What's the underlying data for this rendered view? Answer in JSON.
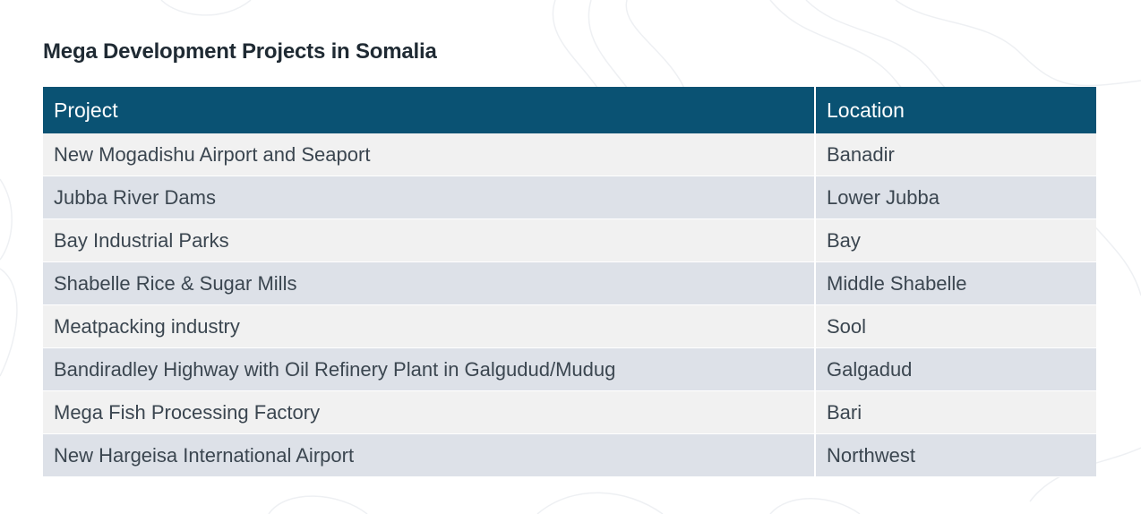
{
  "title": "Mega Development Projects in Somalia",
  "table": {
    "headers": [
      "Project",
      "Location"
    ],
    "rows": [
      {
        "project": "New Mogadishu Airport and Seaport",
        "location": "Banadir"
      },
      {
        "project": "Jubba River Dams",
        "location": "Lower Jubba"
      },
      {
        "project": "Bay Industrial Parks",
        "location": "Bay"
      },
      {
        "project": "Shabelle Rice & Sugar Mills",
        "location": "Middle Shabelle"
      },
      {
        "project": "Meatpacking industry",
        "location": "Sool"
      },
      {
        "project": "Bandiradley Highway with Oil Refinery Plant in Galgudud/Mudug",
        "location": "Galgadud"
      },
      {
        "project": "Mega Fish Processing Factory",
        "location": "Bari"
      },
      {
        "project": "New Hargeisa International Airport",
        "location": "Northwest"
      }
    ]
  },
  "colors": {
    "header_bg": "#0a5273",
    "row_light": "#f1f1f1",
    "row_dark": "#dde1e8"
  }
}
